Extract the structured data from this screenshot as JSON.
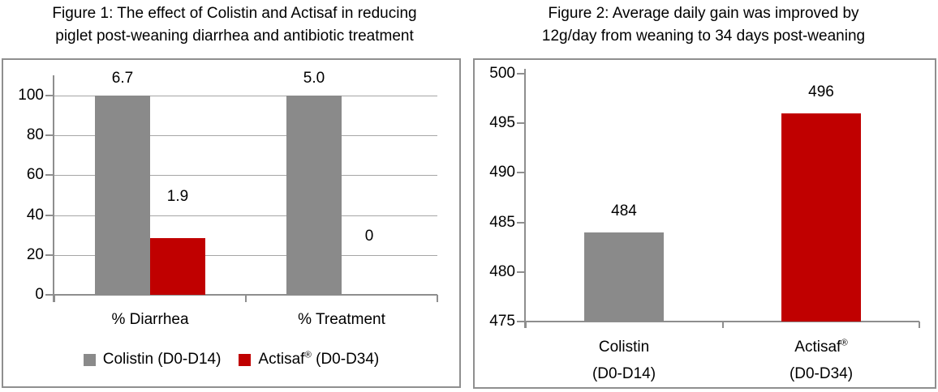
{
  "colors": {
    "colistin_gray": "#8A8A8A",
    "actisaf_red": "#C00000",
    "gridline": "#A6A6A6",
    "axis": "#8E8E8E",
    "panel_border": "#8F8F8F",
    "text": "#000000"
  },
  "chart_data": [
    {
      "id": "figure1",
      "type": "bar",
      "title": "Figure 1: The effect of Colistin and Actisaf in reducing piglet post-weaning diarrhea and antibiotic treatment",
      "title_lines": [
        "Figure 1: The effect of Colistin and Actisaf in reducing",
        "piglet post-weaning diarrhea and antibiotic treatment"
      ],
      "categories": [
        "% Diarrhea",
        "% Treatment"
      ],
      "series": [
        {
          "name": "Colistin (D0-D14)",
          "color_key": "colistin_gray",
          "values": [
            6.7,
            5.0
          ],
          "value_labels": [
            "6.7",
            "5.0"
          ],
          "display_heights": [
            100,
            100
          ]
        },
        {
          "name": "Actisaf® (D0-D34)",
          "color_key": "actisaf_red",
          "values": [
            1.9,
            0
          ],
          "value_labels": [
            "1.9",
            "0"
          ],
          "display_heights": [
            28.4,
            0
          ]
        }
      ],
      "ylim": [
        0,
        100
      ],
      "yticks": [
        0,
        20,
        40,
        60,
        80,
        100
      ],
      "grid": true,
      "legend_position": "bottom",
      "scaling_note": "bar heights drawn normalized to Colistin = 100; data labels show actual values"
    },
    {
      "id": "figure2",
      "type": "bar",
      "title": "Figure 2: Average daily gain was improved by 12g/day from weaning to 34 days post-weaning",
      "title_lines": [
        "Figure 2: Average daily gain was improved by",
        "12g/day from weaning to 34 days post-weaning"
      ],
      "categories": [
        "Colistin (D0-D14)",
        "Actisaf® (D0-D34)"
      ],
      "category_lines": [
        [
          "Colistin",
          "(D0-D14)"
        ],
        [
          "Actisaf®",
          "(D0-D34)"
        ]
      ],
      "values": [
        484,
        496
      ],
      "value_labels": [
        "484",
        "496"
      ],
      "bar_color_keys": [
        "colistin_gray",
        "actisaf_red"
      ],
      "ylim": [
        475,
        500
      ],
      "yticks": [
        475,
        480,
        485,
        490,
        495,
        500
      ],
      "grid": false,
      "xlabel": "",
      "ylabel": ""
    }
  ]
}
